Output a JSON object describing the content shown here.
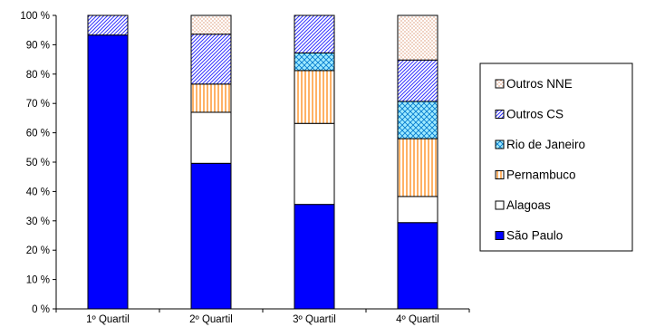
{
  "chart_data": {
    "type": "bar",
    "stacked": true,
    "percent_stacked": true,
    "categories": [
      "1º Quartil",
      "2º Quartil",
      "3º Quartil",
      "4º Quartil"
    ],
    "series": [
      {
        "name": "São Paulo",
        "values": [
          93.3,
          49.6,
          35.6,
          29.4
        ],
        "color": "#0000ff",
        "pattern": "solid"
      },
      {
        "name": "Alagoas",
        "values": [
          0.0,
          17.4,
          27.6,
          8.9
        ],
        "color": "#ffffff",
        "pattern": "solid"
      },
      {
        "name": "Pernambuco",
        "values": [
          0.0,
          9.6,
          18.0,
          19.7
        ],
        "color": "#ff8000",
        "pattern": "vertical-lines"
      },
      {
        "name": "Rio de Janeiro",
        "values": [
          0.0,
          0.0,
          6.0,
          12.7
        ],
        "color": "#00ccff",
        "pattern": "diagonal-crosshatch"
      },
      {
        "name": "Outros CS",
        "values": [
          6.7,
          17.0,
          12.8,
          14.1
        ],
        "color": "#3333ff",
        "pattern": "diagonal-lines"
      },
      {
        "name": "Outros NNE",
        "values": [
          0.0,
          6.4,
          0.0,
          15.2
        ],
        "color": "#cc6633",
        "pattern": "dots"
      }
    ],
    "y_ticks": [
      "0 %",
      "10 %",
      "20 %",
      "30 %",
      "40 %",
      "50 %",
      "60 %",
      "70 %",
      "80 %",
      "90 %",
      "100 %"
    ],
    "ylim": [
      0,
      100
    ],
    "grid": false,
    "legend_position": "right",
    "legend_order": [
      "Outros NNE",
      "Outros CS",
      "Rio de Janeiro",
      "Pernambuco",
      "Alagoas",
      "São Paulo"
    ]
  }
}
